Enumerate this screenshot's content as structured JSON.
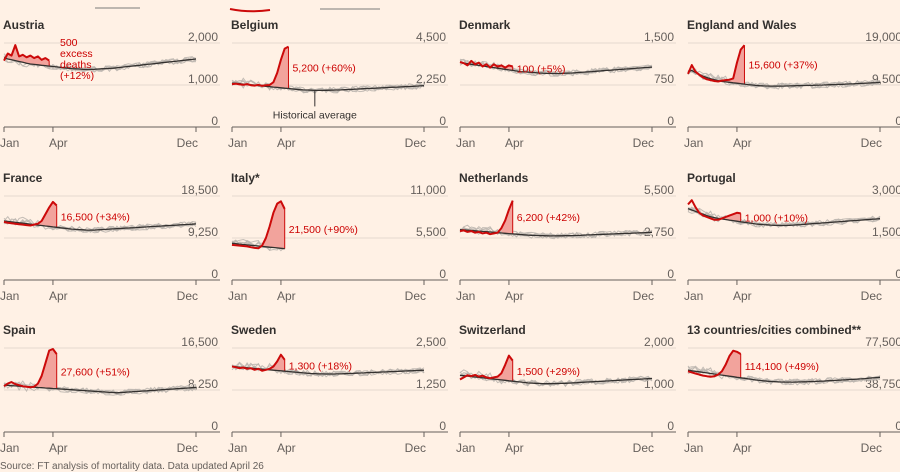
{
  "colors": {
    "excess": "#cc0a0a",
    "excess_fill": "#f2a39c",
    "average": "#33302e",
    "history": "#bdb6af",
    "axis": "#66605c",
    "background": "#fff1e5"
  },
  "source": "Source: FT analysis of mortality data. Data updated April 26",
  "chart_data": [
    {
      "type": "line",
      "title": "Austria",
      "xticks": [
        "Jan",
        "Apr",
        "Dec"
      ],
      "yticks": [
        "2,000",
        "1,000",
        "0"
      ],
      "ylim": [
        0,
        2000
      ],
      "current_end_week": 12,
      "annotation": "500 excess deaths (+12%)",
      "average": [
        1650,
        1620,
        1600,
        1580,
        1560,
        1540,
        1520,
        1500,
        1490,
        1480,
        1470,
        1460,
        1450,
        1440,
        1430,
        1420,
        1410,
        1400,
        1390,
        1385,
        1380,
        1375,
        1370,
        1372,
        1375,
        1380,
        1385,
        1390,
        1395,
        1400,
        1410,
        1420,
        1430,
        1440,
        1450,
        1460,
        1470,
        1480,
        1490,
        1500,
        1510,
        1520,
        1530,
        1540,
        1550,
        1560,
        1570,
        1580,
        1590,
        1600,
        1610,
        1620
      ],
      "current": [
        1580,
        1750,
        1700,
        1950,
        1680,
        1720,
        1660,
        1700,
        1640,
        1680,
        1600,
        1640,
        1580
      ],
      "label_band": {
        "text_lines": [
          "500",
          "excess",
          "deaths",
          "(+12%)"
        ]
      }
    },
    {
      "type": "line",
      "title": "Belgium",
      "xticks": [
        "Jan",
        "Apr",
        "Dec"
      ],
      "yticks": [
        "4,500",
        "2,250",
        "0"
      ],
      "ylim": [
        0,
        4500
      ],
      "current_end_week": 15,
      "annotation": "5,200 (+60%)",
      "average_label": "Historical average",
      "average": [
        2350,
        2340,
        2320,
        2300,
        2280,
        2260,
        2240,
        2220,
        2200,
        2180,
        2160,
        2140,
        2120,
        2100,
        2080,
        2060,
        2040,
        2020,
        2000,
        1990,
        1980,
        1970,
        1960,
        1960,
        1960,
        1965,
        1970,
        1975,
        1980,
        1990,
        2000,
        2010,
        2020,
        2030,
        2040,
        2050,
        2060,
        2070,
        2080,
        2090,
        2100,
        2110,
        2120,
        2130,
        2140,
        2150,
        2160,
        2170,
        2180,
        2190,
        2200,
        2210
      ],
      "current": [
        2300,
        2320,
        2280,
        2260,
        2300,
        2240,
        2220,
        2260,
        2200,
        2240,
        2250,
        2400,
        2900,
        3600,
        4200,
        4300
      ]
    },
    {
      "type": "line",
      "title": "Denmark",
      "xticks": [
        "Jan",
        "Apr",
        "Dec"
      ],
      "yticks": [
        "1,500",
        "750",
        "0"
      ],
      "ylim": [
        0,
        1500
      ],
      "current_end_week": 14,
      "annotation": "100 (+5%)",
      "average": [
        1150,
        1140,
        1130,
        1120,
        1110,
        1100,
        1090,
        1080,
        1070,
        1060,
        1050,
        1040,
        1030,
        1020,
        1010,
        1000,
        990,
        985,
        980,
        975,
        970,
        965,
        960,
        958,
        956,
        955,
        956,
        958,
        960,
        962,
        965,
        970,
        975,
        980,
        985,
        990,
        995,
        1000,
        1005,
        1010,
        1015,
        1020,
        1025,
        1030,
        1035,
        1040,
        1045,
        1050,
        1055,
        1060,
        1065,
        1070
      ],
      "current": [
        1160,
        1140,
        1100,
        1180,
        1120,
        1150,
        1080,
        1120,
        1060,
        1120,
        1080,
        1100,
        1060,
        1100,
        1080
      ]
    },
    {
      "type": "line",
      "title": "England and Wales",
      "xticks": [
        "Jan",
        "Apr",
        "Dec"
      ],
      "yticks": [
        "19,000",
        "9,500",
        "0"
      ],
      "ylim": [
        0,
        19000
      ],
      "current_end_week": 15,
      "annotation": "15,600 (+37%)",
      "average": [
        12500,
        12800,
        12300,
        11900,
        11500,
        11200,
        10900,
        10700,
        10500,
        10300,
        10200,
        10100,
        10000,
        9900,
        9800,
        9700,
        9600,
        9500,
        9400,
        9350,
        9300,
        9280,
        9260,
        9250,
        9250,
        9260,
        9280,
        9300,
        9320,
        9340,
        9360,
        9380,
        9400,
        9420,
        9450,
        9480,
        9510,
        9540,
        9570,
        9600,
        9630,
        9660,
        9700,
        9740,
        9780,
        9820,
        9860,
        9900,
        9950,
        10000,
        10050,
        10100
      ],
      "current": [
        12000,
        14000,
        12500,
        11800,
        11200,
        10800,
        10600,
        10400,
        10300,
        10500,
        10600,
        10700,
        11000,
        14500,
        17500,
        18500
      ]
    },
    {
      "type": "line",
      "title": "France",
      "xticks": [
        "Jan",
        "Apr",
        "Dec"
      ],
      "yticks": [
        "18,500",
        "9,250",
        "0"
      ],
      "ylim": [
        0,
        18500
      ],
      "current_end_week": 14,
      "annotation": "16,500 (+34%)",
      "average": [
        13000,
        12900,
        12800,
        12700,
        12600,
        12500,
        12400,
        12300,
        12200,
        12100,
        12000,
        11900,
        11800,
        11700,
        11600,
        11500,
        11400,
        11300,
        11200,
        11150,
        11100,
        11050,
        11000,
        11000,
        11000,
        11050,
        11100,
        11150,
        11200,
        11250,
        11300,
        11350,
        11400,
        11450,
        11500,
        11550,
        11600,
        11650,
        11700,
        11750,
        11800,
        11850,
        11900,
        11950,
        12000,
        12050,
        12100,
        12150,
        12200,
        12250,
        12300,
        12350
      ],
      "current": [
        12800,
        12600,
        12500,
        12400,
        12300,
        12200,
        12100,
        12000,
        12200,
        12400,
        13000,
        14500,
        16000,
        17200,
        16400
      ]
    },
    {
      "type": "line",
      "title": "Italy*",
      "xticks": [
        "Jan",
        "Apr",
        "Dec"
      ],
      "yticks": [
        "11,000",
        "5,500",
        "0"
      ],
      "ylim": [
        0,
        11000
      ],
      "current_end_week": 14,
      "annotation": "21,500 (+90%)",
      "average": [
        4800,
        4750,
        4700,
        4650,
        4600,
        4550,
        4500,
        4450,
        4400,
        4350,
        4300,
        4250,
        4200,
        4150,
        4100
      ],
      "current": [
        4600,
        4550,
        4500,
        4450,
        4400,
        4300,
        4200,
        4150,
        4500,
        5500,
        7000,
        8800,
        10000,
        10300,
        9300
      ]
    },
    {
      "type": "line",
      "title": "Netherlands",
      "xticks": [
        "Jan",
        "Apr",
        "Dec"
      ],
      "yticks": [
        "5,500",
        "2,750",
        "0"
      ],
      "ylim": [
        0,
        5500
      ],
      "current_end_week": 14,
      "annotation": "6,200 (+42%)",
      "average": [
        3300,
        3280,
        3260,
        3240,
        3220,
        3200,
        3180,
        3160,
        3140,
        3120,
        3100,
        3080,
        3060,
        3040,
        3020,
        3000,
        2980,
        2960,
        2940,
        2930,
        2920,
        2910,
        2900,
        2895,
        2890,
        2890,
        2892,
        2895,
        2900,
        2905,
        2910,
        2920,
        2930,
        2940,
        2950,
        2960,
        2970,
        2980,
        2990,
        3000,
        3010,
        3020,
        3030,
        3040,
        3050,
        3060,
        3070,
        3080,
        3090,
        3100,
        3110,
        3120
      ],
      "current": [
        3200,
        3250,
        3150,
        3200,
        3100,
        3150,
        3050,
        3100,
        3000,
        3050,
        3100,
        3400,
        3900,
        4600,
        5200
      ]
    },
    {
      "type": "line",
      "title": "Portugal",
      "xticks": [
        "Jan",
        "Apr",
        "Dec"
      ],
      "yticks": [
        "3,000",
        "1,500",
        "0"
      ],
      "ylim": [
        0,
        3000
      ],
      "current_end_week": 14,
      "annotation": "1,000 (+10%)",
      "average": [
        2550,
        2500,
        2450,
        2400,
        2350,
        2300,
        2260,
        2230,
        2200,
        2180,
        2160,
        2140,
        2120,
        2100,
        2080,
        2060,
        2040,
        2020,
        2000,
        1990,
        1980,
        1970,
        1960,
        1955,
        1950,
        1948,
        1950,
        1955,
        1960,
        1970,
        1980,
        1990,
        2000,
        2010,
        2020,
        2030,
        2040,
        2050,
        2060,
        2070,
        2080,
        2090,
        2100,
        2110,
        2120,
        2130,
        2140,
        2150,
        2160,
        2170,
        2180,
        2190
      ],
      "current": [
        2700,
        2850,
        2600,
        2400,
        2300,
        2250,
        2200,
        2150,
        2150,
        2200,
        2250,
        2300,
        2350,
        2400,
        2380
      ]
    },
    {
      "type": "line",
      "title": "Spain",
      "xticks": [
        "Jan",
        "Apr",
        "Dec"
      ],
      "yticks": [
        "16,500",
        "8,250",
        "0"
      ],
      "ylim": [
        0,
        16500
      ],
      "current_end_week": 14,
      "annotation": "27,600 (+51%)",
      "average": [
        9200,
        9150,
        9100,
        9050,
        9000,
        8950,
        8900,
        8850,
        8800,
        8750,
        8700,
        8650,
        8600,
        8550,
        8500,
        8450,
        8400,
        8350,
        8300,
        8250,
        8200,
        8150,
        8100,
        8050,
        8000,
        7950,
        7900,
        7850,
        7800,
        7750,
        7700,
        7750,
        7800,
        7850,
        7900,
        7950,
        8000,
        8050,
        8100,
        8150,
        8200,
        8250,
        8300,
        8350,
        8400,
        8450,
        8500,
        8550,
        8600,
        8650,
        8700,
        8750
      ],
      "current": [
        9000,
        9500,
        9800,
        9400,
        9200,
        9000,
        8900,
        8800,
        8900,
        9500,
        11000,
        13500,
        16000,
        16300,
        15300
      ]
    },
    {
      "type": "line",
      "title": "Sweden",
      "xticks": [
        "Jan",
        "Apr",
        "Dec"
      ],
      "yticks": [
        "2,500",
        "1,250",
        "0"
      ],
      "ylim": [
        0,
        2500
      ],
      "current_end_week": 14,
      "annotation": "1,300 (+18%)",
      "average": [
        1950,
        1940,
        1930,
        1920,
        1910,
        1900,
        1890,
        1880,
        1870,
        1860,
        1850,
        1840,
        1830,
        1820,
        1810,
        1800,
        1790,
        1780,
        1770,
        1760,
        1750,
        1740,
        1735,
        1730,
        1728,
        1726,
        1725,
        1726,
        1728,
        1730,
        1735,
        1740,
        1745,
        1750,
        1755,
        1760,
        1765,
        1770,
        1775,
        1780,
        1785,
        1790,
        1795,
        1800,
        1805,
        1810,
        1815,
        1820,
        1825,
        1830,
        1835,
        1840
      ],
      "current": [
        1950,
        1930,
        1900,
        1920,
        1880,
        1900,
        1850,
        1880,
        1820,
        1850,
        1880,
        1950,
        2100,
        2300,
        2150
      ]
    },
    {
      "type": "line",
      "title": "Switzerland",
      "xticks": [
        "Jan",
        "Apr",
        "Dec"
      ],
      "yticks": [
        "2,000",
        "1,000",
        "0"
      ],
      "ylim": [
        0,
        2000
      ],
      "current_end_week": 14,
      "annotation": "1,500 (+29%)",
      "average": [
        1350,
        1340,
        1330,
        1320,
        1310,
        1300,
        1290,
        1280,
        1270,
        1260,
        1250,
        1240,
        1230,
        1220,
        1210,
        1200,
        1190,
        1180,
        1170,
        1165,
        1160,
        1155,
        1150,
        1150,
        1150,
        1152,
        1155,
        1158,
        1160,
        1165,
        1170,
        1175,
        1180,
        1185,
        1190,
        1195,
        1200,
        1205,
        1210,
        1215,
        1220,
        1225,
        1230,
        1235,
        1240,
        1245,
        1250,
        1255,
        1260,
        1265,
        1270,
        1275
      ],
      "current": [
        1250,
        1300,
        1350,
        1330,
        1360,
        1320,
        1340,
        1300,
        1280,
        1300,
        1320,
        1400,
        1600,
        1820,
        1700
      ]
    },
    {
      "type": "line",
      "title": "13 countries/cities combined**",
      "xticks": [
        "Jan",
        "Apr",
        "Dec"
      ],
      "yticks": [
        "77,500",
        "38,750",
        "0"
      ],
      "ylim": [
        0,
        77500
      ],
      "current_end_week": 14,
      "annotation": "114,100 (+49%)",
      "average": [
        57000,
        56500,
        56000,
        55500,
        55000,
        54500,
        54000,
        53500,
        53000,
        52500,
        52000,
        51500,
        51000,
        50500,
        50000,
        49500,
        49000,
        48500,
        48000,
        47600,
        47200,
        46900,
        46600,
        46400,
        46200,
        46100,
        46000,
        46000,
        46050,
        46100,
        46200,
        46300,
        46400,
        46550,
        46700,
        46850,
        47000,
        47200,
        47400,
        47600,
        47800,
        48000,
        48200,
        48400,
        48600,
        48800,
        49000,
        49300,
        49600,
        49900,
        50200,
        50500
      ],
      "current": [
        56000,
        55000,
        54000,
        53000,
        52000,
        51500,
        51000,
        51500,
        53000,
        56000,
        62000,
        70000,
        75000,
        74000,
        72000
      ]
    }
  ]
}
